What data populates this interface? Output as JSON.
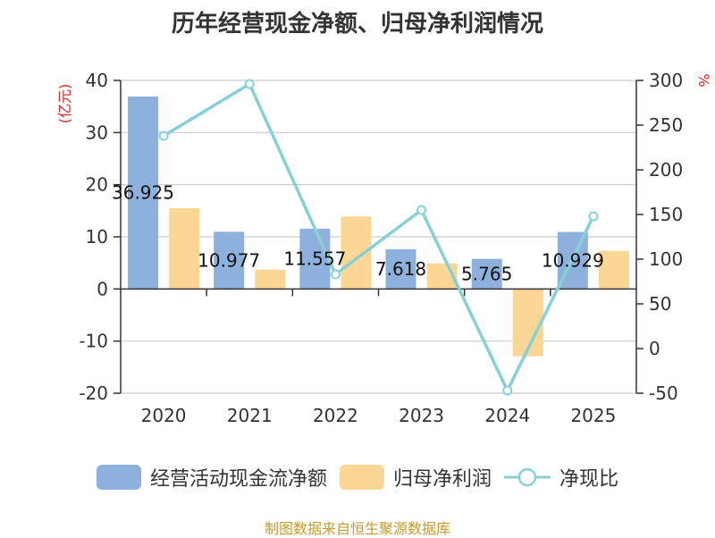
{
  "title": "历年经营现金净额、归母净利润情况",
  "source": "制图数据来自恒生聚源数据库",
  "colors": {
    "cash_flow": "#8eb0dd",
    "net_profit": "#fcd695",
    "ratio": "#86d0d6",
    "unit": "#dd2222",
    "source": "#c59a2e"
  },
  "chart_data": {
    "type": "bar",
    "categories": [
      "2020",
      "2021",
      "2022",
      "2023",
      "2024",
      "2025"
    ],
    "series": [
      {
        "name": "经营活动现金流净额",
        "type": "bar",
        "axis": "left",
        "values": [
          36.925,
          10.977,
          11.557,
          7.618,
          5.765,
          10.929
        ],
        "labels": [
          "36.925",
          "10.977",
          "11.557",
          "7.618",
          "5.765",
          "10.929"
        ]
      },
      {
        "name": "归母净利润",
        "type": "bar",
        "axis": "left",
        "values": [
          15.5,
          3.7,
          13.9,
          4.9,
          -12.9,
          7.3
        ]
      },
      {
        "name": "净现比",
        "type": "line",
        "axis": "right",
        "values": [
          238,
          296,
          83,
          155,
          -47,
          148
        ]
      }
    ],
    "left_axis": {
      "unit": "(亿元)",
      "ylim": [
        -20,
        40
      ],
      "ticks": [
        "40",
        "30",
        "20",
        "10",
        "0",
        "-10",
        "-20"
      ]
    },
    "right_axis": {
      "unit": "%",
      "ylim": [
        -50,
        300
      ],
      "ticks": [
        "300",
        "250",
        "200",
        "150",
        "100",
        "50",
        "0",
        "-50"
      ]
    },
    "grid": true,
    "legend_position": "bottom"
  }
}
